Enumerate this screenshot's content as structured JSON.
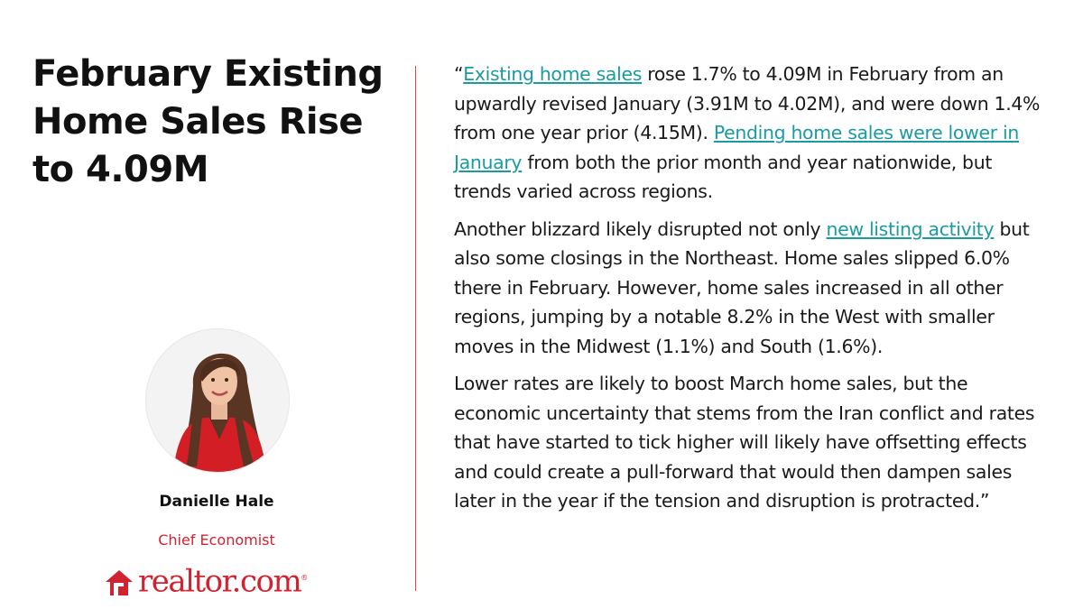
{
  "headline": "February Existing Home Sales Rise to 4.09M",
  "quote": {
    "p1": {
      "open_quote": "“",
      "link1": "Existing home sales",
      "text1": " rose 1.7% to 4.09M in February from an upwardly revised January (3.91M to 4.02M), and were down 1.4% from one year prior (4.15M). ",
      "link2": "Pending home sales were lower in January",
      "text2": " from both the prior month and year nationwide, but trends varied across regions."
    },
    "p2": {
      "text0": "Another blizzard likely disrupted not only ",
      "link1": "new listing activity",
      "text1": " but also some closings in the Northeast. Home sales slipped 6.0% there in February. However, home sales increased in all other regions, jumping by a notable 8.2% in the West with smaller moves in the Midwest (1.1%) and South (1.6%)."
    },
    "p3": "Lower rates are likely to boost March home sales, but the economic uncertainty that stems from the Iran conflict and rates that have started to tick higher will likely have offsetting effects and could create a pull-forward that would then dampen sales later in the year if the tension and disruption is protracted.”"
  },
  "person": {
    "name": "Danielle Hale",
    "title": "Chief Economist"
  },
  "logo": {
    "text": "realtor.com",
    "tm": "®"
  },
  "colors": {
    "brand_red": "#d3222f",
    "link_teal": "#1a9ba3",
    "divider": "#d64545"
  }
}
